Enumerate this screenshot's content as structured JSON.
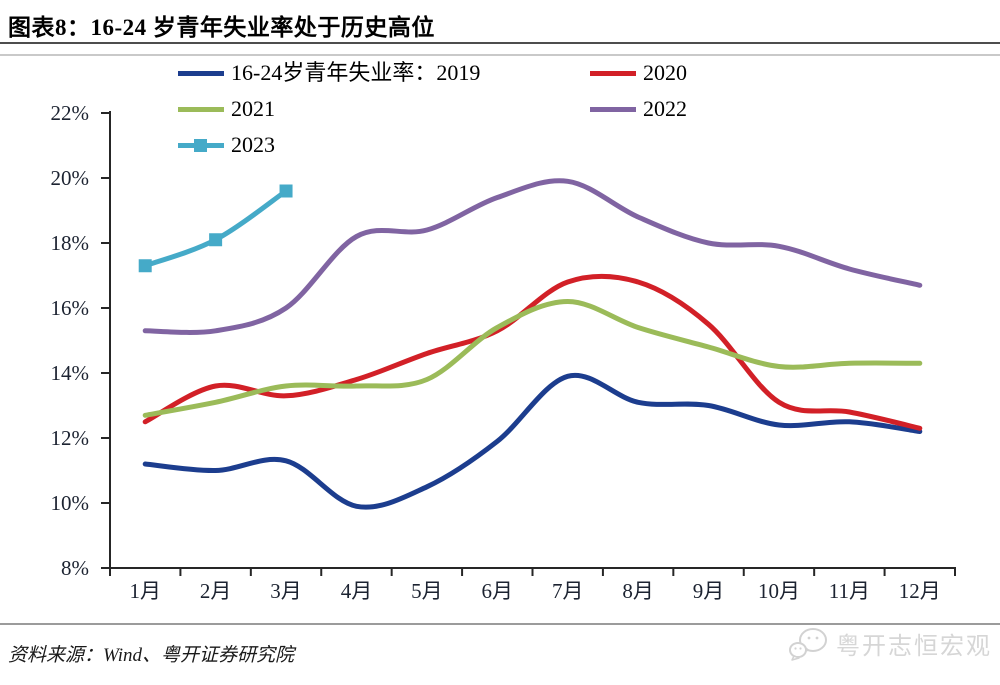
{
  "header": {
    "title": "图表8：16-24 岁青年失业率处于历史高位"
  },
  "legend": {
    "items": [
      {
        "name": "2019",
        "label": "16-24岁青年失业率：2019",
        "color": "#1C3D8E",
        "marker": false
      },
      {
        "name": "2020",
        "label": "2020",
        "color": "#D22027",
        "marker": false
      },
      {
        "name": "2021",
        "label": "2021",
        "color": "#9BBB59",
        "marker": false
      },
      {
        "name": "2022",
        "label": "2022",
        "color": "#8064A2",
        "marker": false
      },
      {
        "name": "2023",
        "label": "2023",
        "color": "#45AAC8",
        "marker": true
      }
    ]
  },
  "chart_data": {
    "type": "line",
    "title": "图表8：16-24 岁青年失业率处于历史高位",
    "smooth": true,
    "grid": false,
    "legend_position": "top",
    "categories": [
      "1月",
      "2月",
      "3月",
      "4月",
      "5月",
      "6月",
      "7月",
      "8月",
      "9月",
      "10月",
      "11月",
      "12月"
    ],
    "y_axis": {
      "min": 8,
      "max": 22,
      "step": 2,
      "suffix": "%",
      "ticks": [
        8,
        10,
        12,
        14,
        16,
        18,
        20,
        22
      ]
    },
    "series": [
      {
        "name": "16-24岁青年失业率：2019",
        "color": "#1C3D8E",
        "marker": "none",
        "values": [
          11.2,
          11.0,
          11.3,
          9.9,
          10.5,
          11.9,
          13.9,
          13.1,
          13.0,
          12.4,
          12.5,
          12.2
        ]
      },
      {
        "name": "2020",
        "color": "#D22027",
        "marker": "none",
        "values": [
          12.5,
          13.6,
          13.3,
          13.8,
          14.6,
          15.3,
          16.8,
          16.8,
          15.5,
          13.1,
          12.8,
          12.3
        ]
      },
      {
        "name": "2021",
        "color": "#9BBB59",
        "marker": "none",
        "values": [
          12.7,
          13.1,
          13.6,
          13.6,
          13.8,
          15.4,
          16.2,
          15.4,
          14.8,
          14.2,
          14.3,
          14.3
        ]
      },
      {
        "name": "2022",
        "color": "#8064A2",
        "marker": "none",
        "values": [
          15.3,
          15.3,
          16.0,
          18.2,
          18.4,
          19.4,
          19.9,
          18.8,
          18.0,
          17.9,
          17.2,
          16.7
        ]
      },
      {
        "name": "2023",
        "color": "#45AAC8",
        "marker": "square",
        "values": [
          17.3,
          18.1,
          19.6
        ]
      }
    ]
  },
  "footer": {
    "source": "资料来源：Wind、粤开证券研究院",
    "watermark": "粤开志恒宏观"
  }
}
